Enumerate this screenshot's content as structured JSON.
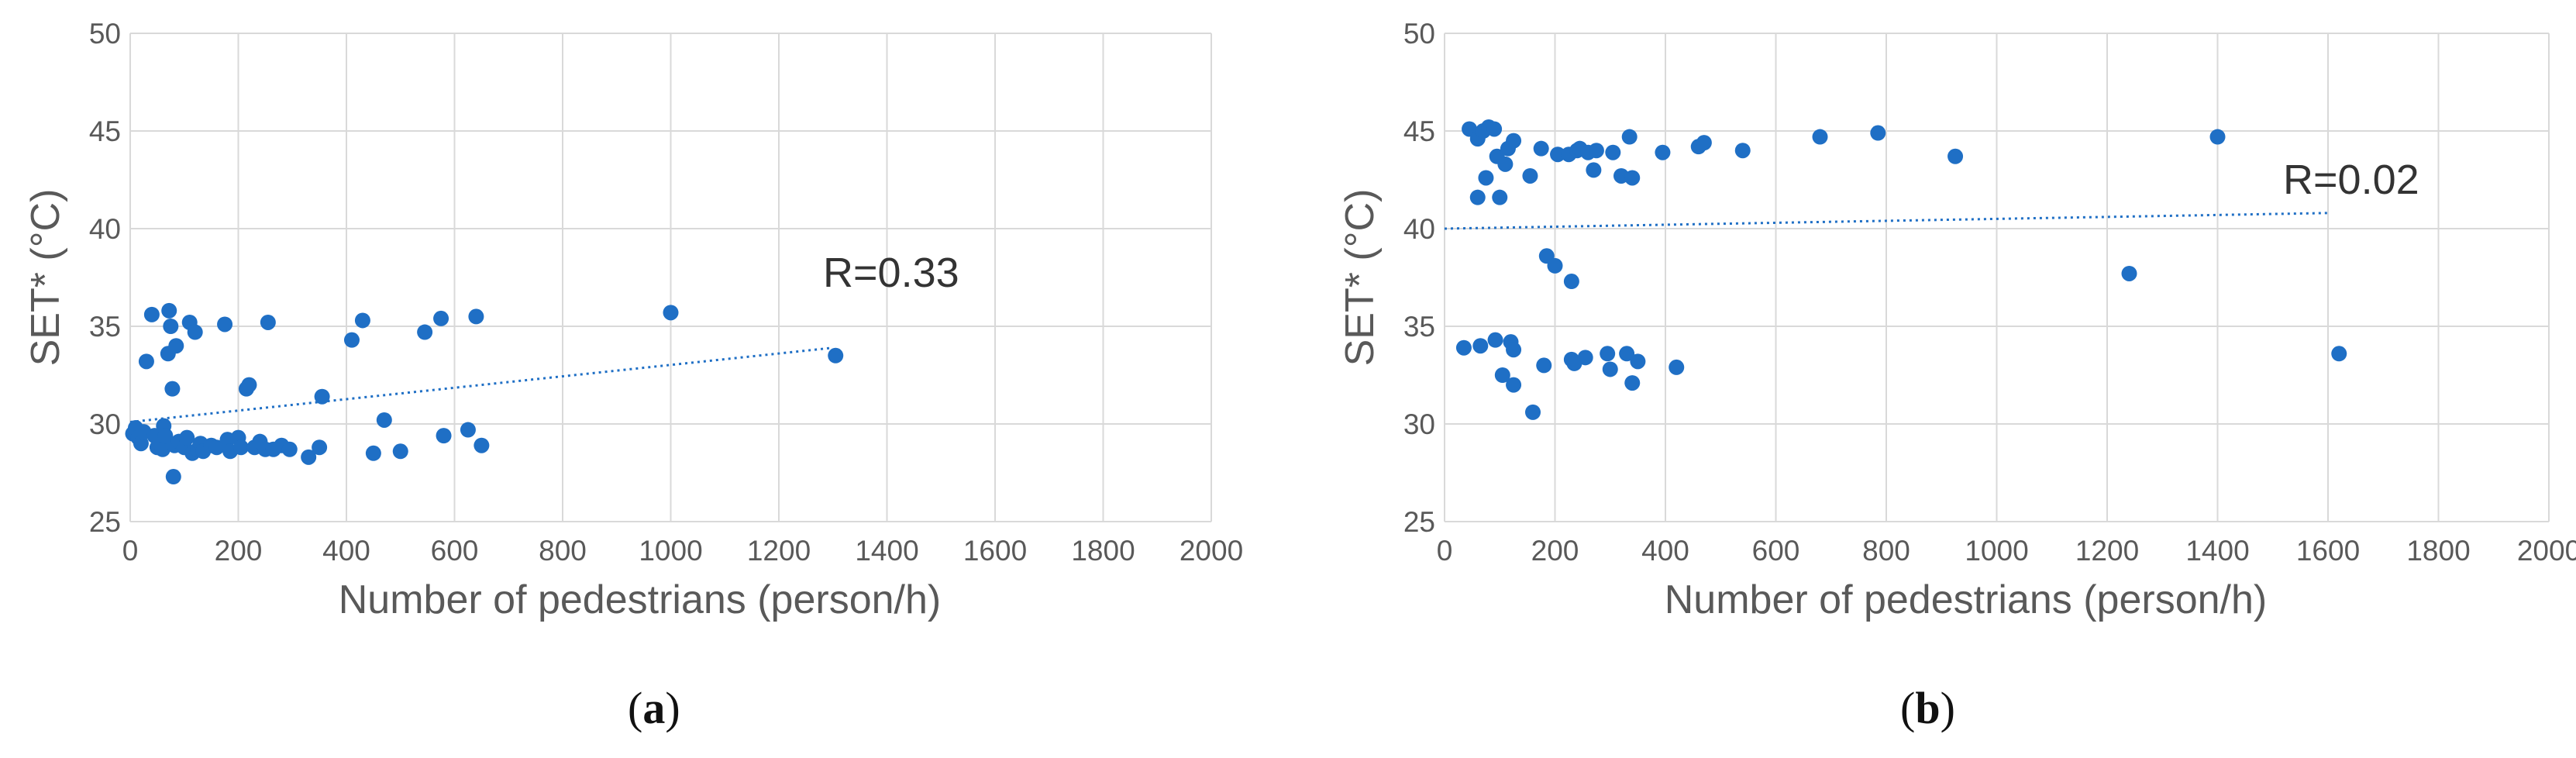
{
  "chart_data": [
    {
      "type": "scatter",
      "panel_label": "a",
      "xlabel": "Number of pedestrians (person/h)",
      "ylabel": "SET* (°C)",
      "xlim": [
        0,
        2000
      ],
      "ylim": [
        25,
        50
      ],
      "xticks": [
        0,
        200,
        400,
        600,
        800,
        1000,
        1200,
        1400,
        1600,
        1800,
        2000
      ],
      "yticks": [
        25,
        30,
        35,
        40,
        45,
        50
      ],
      "grid": true,
      "color": "#1f6fc5",
      "annotation": "R=0.33",
      "trendline": {
        "x": [
          0,
          1300
        ],
        "y": [
          30.1,
          33.9
        ]
      },
      "points": [
        [
          5,
          29.5
        ],
        [
          10,
          29.8
        ],
        [
          15,
          29.3
        ],
        [
          20,
          29.0
        ],
        [
          25,
          29.6
        ],
        [
          30,
          33.2
        ],
        [
          40,
          35.6
        ],
        [
          45,
          29.4
        ],
        [
          50,
          28.8
        ],
        [
          55,
          29.1
        ],
        [
          60,
          28.7
        ],
        [
          62,
          29.9
        ],
        [
          65,
          29.4
        ],
        [
          70,
          33.6
        ],
        [
          72,
          35.8
        ],
        [
          75,
          35.0
        ],
        [
          78,
          31.8
        ],
        [
          80,
          27.3
        ],
        [
          82,
          28.9
        ],
        [
          85,
          34.0
        ],
        [
          90,
          29.1
        ],
        [
          95,
          29.0
        ],
        [
          100,
          28.8
        ],
        [
          105,
          29.3
        ],
        [
          110,
          35.2
        ],
        [
          115,
          28.5
        ],
        [
          120,
          34.7
        ],
        [
          125,
          28.7
        ],
        [
          130,
          29.0
        ],
        [
          135,
          28.6
        ],
        [
          150,
          28.9
        ],
        [
          160,
          28.8
        ],
        [
          175,
          35.1
        ],
        [
          180,
          29.2
        ],
        [
          185,
          28.6
        ],
        [
          200,
          29.3
        ],
        [
          205,
          28.8
        ],
        [
          215,
          31.8
        ],
        [
          220,
          32.0
        ],
        [
          230,
          28.8
        ],
        [
          240,
          29.1
        ],
        [
          250,
          28.7
        ],
        [
          255,
          35.2
        ],
        [
          265,
          28.7
        ],
        [
          280,
          28.9
        ],
        [
          295,
          28.7
        ],
        [
          330,
          28.3
        ],
        [
          350,
          28.8
        ],
        [
          355,
          31.4
        ],
        [
          410,
          34.3
        ],
        [
          430,
          35.3
        ],
        [
          450,
          28.5
        ],
        [
          470,
          30.2
        ],
        [
          500,
          28.6
        ],
        [
          545,
          34.7
        ],
        [
          575,
          35.4
        ],
        [
          580,
          29.4
        ],
        [
          625,
          29.7
        ],
        [
          640,
          35.5
        ],
        [
          650,
          28.9
        ],
        [
          1000,
          35.7
        ],
        [
          1305,
          33.5
        ]
      ]
    },
    {
      "type": "scatter",
      "panel_label": "b",
      "xlabel": "Number of pedestrians (person/h)",
      "ylabel": "SET* (°C)",
      "xlim": [
        0,
        2000
      ],
      "ylim": [
        25,
        50
      ],
      "xticks": [
        0,
        200,
        400,
        600,
        800,
        1000,
        1200,
        1400,
        1600,
        1800,
        2000
      ],
      "yticks": [
        25,
        30,
        35,
        40,
        45,
        50
      ],
      "grid": true,
      "color": "#1f6fc5",
      "annotation": "R=0.02",
      "trendline": {
        "x": [
          0,
          1600
        ],
        "y": [
          40.0,
          40.8
        ]
      },
      "points": [
        [
          35,
          33.9
        ],
        [
          45,
          45.1
        ],
        [
          60,
          41.6
        ],
        [
          60,
          44.6
        ],
        [
          65,
          34.0
        ],
        [
          70,
          45.0
        ],
        [
          75,
          42.6
        ],
        [
          80,
          45.2
        ],
        [
          90,
          45.1
        ],
        [
          92,
          34.3
        ],
        [
          95,
          43.7
        ],
        [
          100,
          41.6
        ],
        [
          105,
          32.5
        ],
        [
          110,
          43.3
        ],
        [
          115,
          44.1
        ],
        [
          120,
          34.2
        ],
        [
          125,
          32.0
        ],
        [
          125,
          44.5
        ],
        [
          125,
          33.8
        ],
        [
          155,
          42.7
        ],
        [
          160,
          30.6
        ],
        [
          175,
          44.1
        ],
        [
          180,
          33.0
        ],
        [
          185,
          38.6
        ],
        [
          200,
          38.1
        ],
        [
          205,
          43.8
        ],
        [
          225,
          43.8
        ],
        [
          230,
          37.3
        ],
        [
          230,
          33.3
        ],
        [
          235,
          33.1
        ],
        [
          240,
          44.0
        ],
        [
          245,
          44.1
        ],
        [
          255,
          33.4
        ],
        [
          260,
          43.9
        ],
        [
          270,
          43.0
        ],
        [
          275,
          44.0
        ],
        [
          295,
          33.6
        ],
        [
          300,
          32.8
        ],
        [
          305,
          43.9
        ],
        [
          320,
          42.7
        ],
        [
          330,
          33.6
        ],
        [
          335,
          44.7
        ],
        [
          340,
          42.6
        ],
        [
          340,
          32.1
        ],
        [
          350,
          33.2
        ],
        [
          395,
          43.9
        ],
        [
          420,
          32.9
        ],
        [
          460,
          44.2
        ],
        [
          470,
          44.4
        ],
        [
          540,
          44.0
        ],
        [
          680,
          44.7
        ],
        [
          785,
          44.9
        ],
        [
          925,
          43.7
        ],
        [
          1240,
          37.7
        ],
        [
          1400,
          44.7
        ],
        [
          1620,
          33.6
        ]
      ]
    }
  ]
}
